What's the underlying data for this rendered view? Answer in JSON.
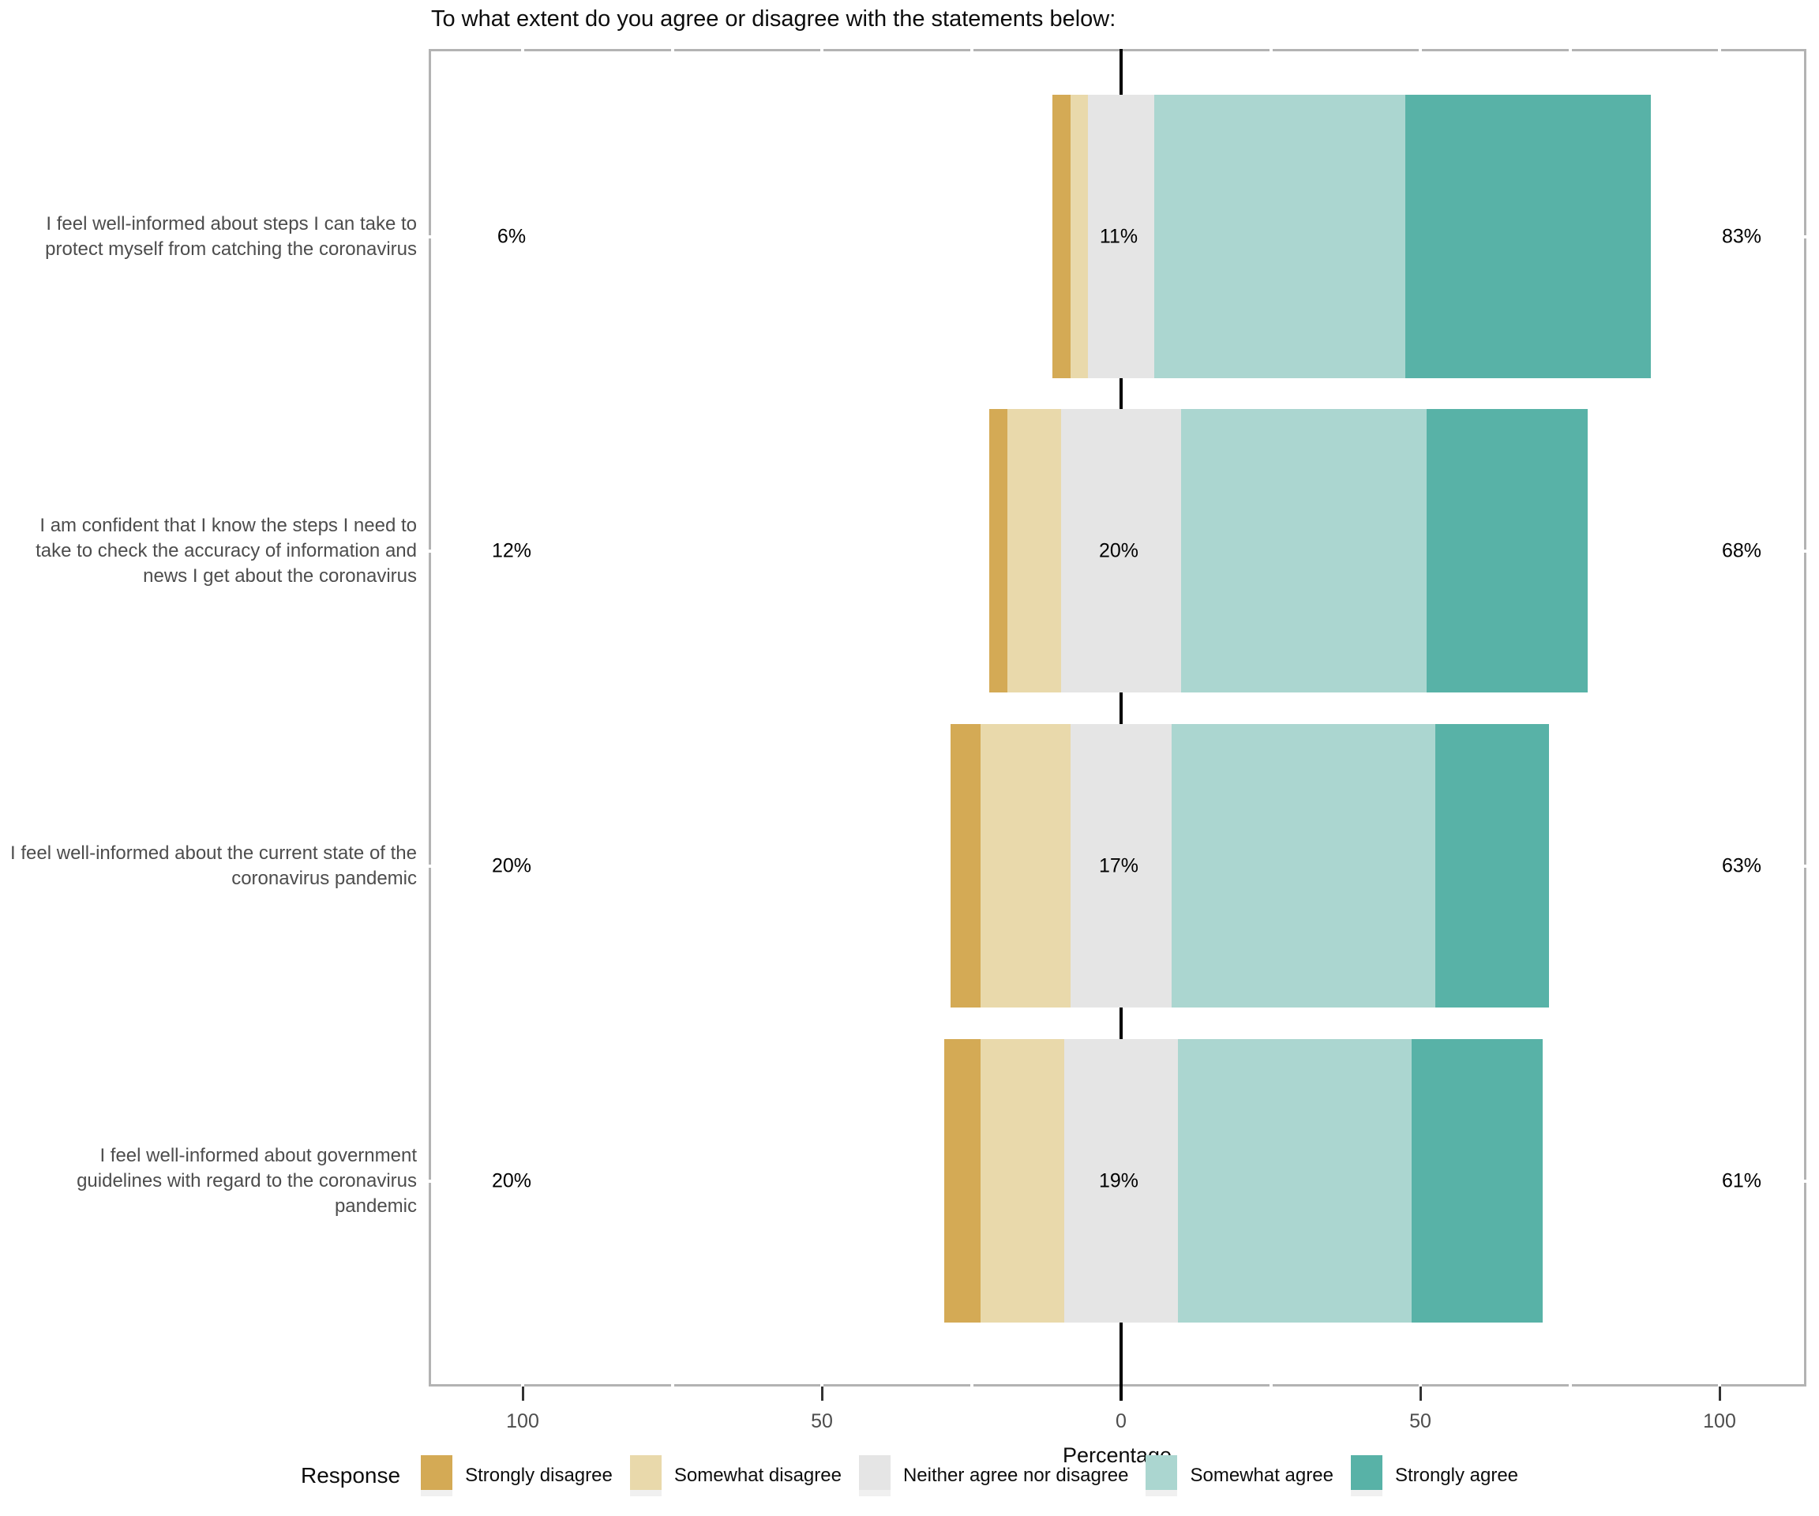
{
  "title": "To what extent do you agree or disagree with the statements below:",
  "axis": {
    "label": "Percentage",
    "tick_values": [
      -100,
      -50,
      0,
      50,
      100
    ],
    "tick_labels": [
      "100",
      "50",
      "0",
      "50",
      "100"
    ]
  },
  "legend": {
    "title": "Response",
    "items": [
      {
        "label": "Strongly disagree",
        "color": "#d4aa55"
      },
      {
        "label": "Somewhat disagree",
        "color": "#e9d9ab"
      },
      {
        "label": "Neither agree nor disagree",
        "color": "#e5e5e5"
      },
      {
        "label": "Somewhat agree",
        "color": "#abd6d0"
      },
      {
        "label": "Strongly agree",
        "color": "#58b2a7"
      }
    ]
  },
  "colors": {
    "panel_border": "#b3b3b3",
    "zero_line": "#000000",
    "axis_text": "#4d4d4d",
    "tick_mark": "#333333",
    "background": "#ffffff"
  },
  "chart_data": {
    "type": "bar",
    "subtype": "diverging-stacked-likert",
    "title": "To what extent do you agree or disagree with the statements below:",
    "xlabel": "Percentage",
    "x_range": [
      -115,
      115
    ],
    "x_ticks": [
      -100,
      -50,
      0,
      50,
      100
    ],
    "grid": "white gridlines every 25 units, visible only as gaps in grey panel border",
    "legend_position": "bottom",
    "neutral_centered_on_zero": true,
    "response_levels": [
      "Strongly disagree",
      "Somewhat disagree",
      "Neither agree nor disagree",
      "Somewhat agree",
      "Strongly agree"
    ],
    "categories": [
      "I feel well-informed about steps I can take to protect myself from catching the coronavirus",
      "I am confident that I know the steps I need to take to check the accuracy of information and news I get about the coronavirus",
      "I feel well-informed about the current state of the coronavirus pandemic",
      "I feel well-informed about government guidelines with regard to the coronavirus pandemic"
    ],
    "series": [
      {
        "name": "Strongly disagree",
        "color": "#d4aa55",
        "values": [
          3,
          3,
          5,
          6
        ]
      },
      {
        "name": "Somewhat disagree",
        "color": "#e9d9ab",
        "values": [
          3,
          9,
          15,
          14
        ]
      },
      {
        "name": "Neither agree nor disagree",
        "color": "#e5e5e5",
        "values": [
          11,
          20,
          17,
          19
        ]
      },
      {
        "name": "Somewhat agree",
        "color": "#abd6d0",
        "values": [
          42,
          41,
          44,
          39
        ]
      },
      {
        "name": "Strongly agree",
        "color": "#58b2a7",
        "values": [
          41,
          27,
          19,
          22
        ]
      }
    ],
    "summary_labels": [
      {
        "disagree": "6%",
        "neither": "11%",
        "agree": "83%"
      },
      {
        "disagree": "12%",
        "neither": "20%",
        "agree": "68%"
      },
      {
        "disagree": "20%",
        "neither": "17%",
        "agree": "63%"
      },
      {
        "disagree": "20%",
        "neither": "19%",
        "agree": "61%"
      }
    ]
  }
}
